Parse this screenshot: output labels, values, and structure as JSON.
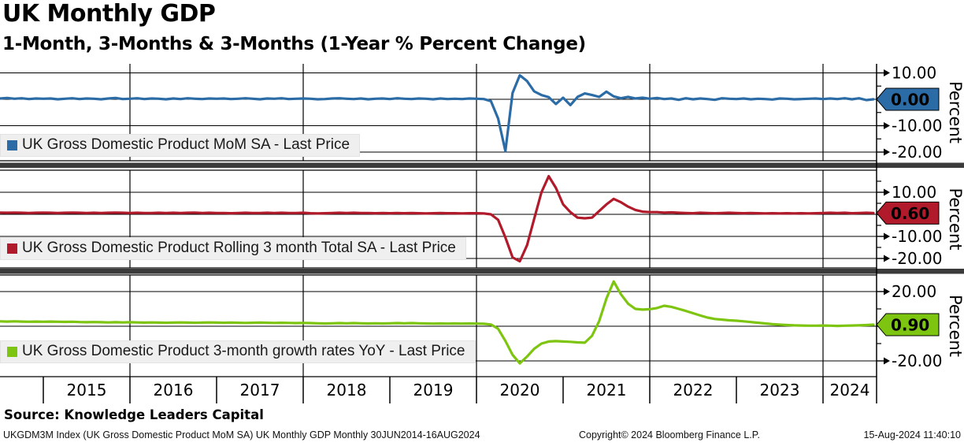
{
  "header": {
    "title": "UK Monthly GDP",
    "subtitle": "1-Month, 3-Months & 3-Months (1-Year % Percent Change)"
  },
  "axis": {
    "ylabel": "Percent",
    "years": [
      "2015",
      "2016",
      "2017",
      "2018",
      "2019",
      "2020",
      "2021",
      "2022",
      "2023",
      "2024"
    ]
  },
  "footer": {
    "source": "Source: Knowledge Leaders Capital",
    "index_info": "UKGDM3M Index (UK Gross Domestic Product MoM SA) UK Monthly GDP  Monthly 30JUN2014-16AUG2024",
    "copyright": "Copyright© 2024 Bloomberg Finance L.P.",
    "timestamp": "15-Aug-2024 11:40:10"
  },
  "chart_data": [
    {
      "type": "line",
      "legend": "UK Gross Domestic Product MoM SA - Last Price",
      "color": "#2c6ca6",
      "last_price": "0.00",
      "tag_text_color": "#ffffff",
      "ylabel": "Percent",
      "yticks": [
        10,
        0,
        -10,
        -20
      ],
      "ylim": [
        -23.3,
        13.4
      ],
      "xlim": [
        2014.5,
        2024.63
      ],
      "x_start": 2014.5,
      "x_step": 0.0833333,
      "values": [
        0.3,
        0.5,
        0.2,
        0.4,
        0.1,
        0.3,
        0.2,
        0.3,
        0.0,
        0.2,
        0.4,
        0.1,
        0.3,
        0.2,
        0.0,
        0.3,
        0.5,
        0.1,
        0.2,
        0.4,
        0.1,
        0.3,
        0.2,
        0.0,
        0.3,
        0.1,
        0.4,
        0.2,
        0.1,
        0.3,
        0.2,
        0.3,
        0.1,
        0.2,
        0.4,
        0.2,
        0.0,
        0.3,
        0.2,
        0.4,
        0.1,
        0.2,
        0.3,
        0.2,
        0.0,
        0.1,
        0.3,
        0.4,
        0.2,
        0.1,
        0.3,
        0.0,
        0.2,
        0.3,
        0.1,
        0.4,
        0.2,
        0.1,
        0.3,
        0.2,
        0.0,
        0.3,
        0.1,
        0.2,
        0.1,
        0.3,
        0.2,
        0.1,
        -0.7,
        -7.3,
        -19.6,
        2.4,
        9.1,
        6.9,
        3.0,
        1.6,
        0.8,
        -1.8,
        0.6,
        -2.2,
        0.9,
        2.2,
        1.6,
        0.9,
        2.9,
        1.1,
        0.4,
        0.9,
        0.3,
        0.6,
        0.2,
        0.5,
        0.1,
        0.3,
        -0.2,
        0.4,
        0.0,
        0.3,
        0.1,
        -0.2,
        0.4,
        0.2,
        0.1,
        0.3,
        0.0,
        0.2,
        0.1,
        -0.1,
        0.3,
        0.2,
        0.0,
        0.1,
        0.2,
        0.3,
        0.1,
        0.3,
        0.1,
        0.4,
        0.0,
        0.4,
        -0.3,
        0.0
      ]
    },
    {
      "type": "line",
      "legend": "UK Gross Domestic Product Rolling 3 month Total SA - Last Price",
      "color": "#b11a2b",
      "last_price": "0.60",
      "tag_text_color": "#ffffff",
      "ylabel": "Percent",
      "yticks": [
        10,
        0,
        -10,
        -20
      ],
      "ylim": [
        -24.3,
        20.0
      ],
      "xlim": [
        2014.5,
        2024.63
      ],
      "x_start": 2014.5,
      "x_step": 0.0833333,
      "values": [
        0.8,
        0.7,
        0.8,
        0.7,
        0.6,
        0.7,
        0.8,
        0.7,
        0.6,
        0.7,
        0.8,
        0.7,
        0.6,
        0.7,
        0.6,
        0.7,
        0.8,
        0.7,
        0.6,
        0.7,
        0.6,
        0.6,
        0.7,
        0.6,
        0.7,
        0.6,
        0.7,
        0.8,
        0.6,
        0.7,
        0.6,
        0.6,
        0.5,
        0.6,
        0.7,
        0.6,
        0.6,
        0.7,
        0.6,
        0.7,
        0.6,
        0.6,
        0.7,
        0.5,
        0.4,
        0.5,
        0.6,
        0.7,
        0.6,
        0.7,
        0.6,
        0.6,
        0.5,
        0.6,
        0.5,
        0.6,
        0.5,
        0.6,
        0.5,
        0.4,
        0.5,
        0.6,
        0.5,
        0.5,
        0.4,
        0.5,
        0.5,
        0.4,
        0.0,
        -2.5,
        -10.5,
        -19.5,
        -21.3,
        -14.0,
        -2.0,
        10.0,
        17.3,
        12.0,
        4.5,
        1.0,
        -1.5,
        -1.8,
        -1.5,
        1.5,
        4.5,
        7.0,
        5.5,
        3.5,
        2.0,
        1.2,
        1.0,
        1.0,
        0.8,
        0.9,
        0.7,
        0.6,
        0.5,
        0.7,
        0.6,
        0.5,
        0.6,
        0.7,
        0.6,
        0.5,
        0.6,
        0.5,
        0.4,
        0.5,
        0.4,
        0.5,
        0.4,
        0.5,
        0.4,
        0.5,
        0.6,
        0.7,
        0.6,
        0.7,
        0.5,
        0.6,
        0.7,
        0.6
      ]
    },
    {
      "type": "line",
      "legend": "UK Gross Domestic Product 3-month growth rates YoY - Last Price",
      "color": "#7dc510",
      "last_price": "0.90",
      "tag_text_color": "#000000",
      "ylabel": "Percent",
      "yticks": [
        20,
        0,
        -20
      ],
      "ylim": [
        -29.1,
        29.5
      ],
      "xlim": [
        2014.5,
        2024.63
      ],
      "x_start": 2014.5,
      "x_step": 0.0833333,
      "values": [
        2.8,
        2.7,
        2.8,
        2.7,
        2.6,
        2.7,
        2.6,
        2.7,
        2.6,
        2.5,
        2.6,
        2.4,
        2.3,
        2.4,
        2.3,
        2.2,
        2.3,
        2.2,
        2.3,
        2.2,
        2.1,
        2.2,
        2.1,
        2.0,
        2.1,
        2.2,
        2.1,
        2.0,
        2.1,
        2.2,
        2.1,
        2.0,
        2.1,
        2.0,
        1.9,
        2.0,
        2.1,
        2.0,
        1.9,
        2.0,
        1.9,
        1.8,
        1.9,
        1.8,
        1.7,
        1.6,
        1.7,
        1.8,
        1.7,
        1.8,
        1.7,
        1.6,
        1.7,
        1.6,
        1.7,
        1.8,
        1.7,
        1.8,
        1.7,
        1.6,
        1.5,
        1.6,
        1.5,
        1.6,
        1.5,
        1.6,
        1.5,
        1.4,
        1.0,
        -1.5,
        -8.5,
        -16.5,
        -21.4,
        -17.5,
        -13.0,
        -10.0,
        -8.8,
        -8.6,
        -8.8,
        -9.0,
        -9.3,
        -9.5,
        -5.5,
        3.0,
        16.0,
        25.8,
        18.5,
        13.0,
        10.0,
        9.6,
        9.8,
        10.5,
        11.8,
        11.2,
        10.0,
        8.8,
        7.5,
        6.2,
        5.0,
        4.2,
        3.8,
        3.4,
        3.2,
        2.8,
        2.4,
        2.0,
        1.6,
        1.2,
        0.9,
        0.7,
        0.5,
        0.4,
        0.3,
        0.3,
        0.4,
        0.3,
        0.2,
        0.3,
        0.4,
        0.5,
        0.7,
        0.9
      ]
    }
  ]
}
